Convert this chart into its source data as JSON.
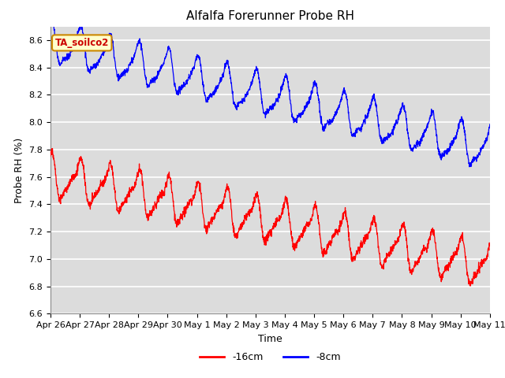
{
  "title": "Alfalfa Forerunner Probe RH",
  "xlabel": "Time",
  "ylabel": "Probe RH (%)",
  "ylim": [
    6.6,
    8.7
  ],
  "xlim": [
    0,
    15
  ],
  "xtick_labels": [
    "Apr 26",
    "Apr 27",
    "Apr 28",
    "Apr 29",
    "Apr 30",
    "May 1",
    "May 2",
    "May 3",
    "May 4",
    "May 5",
    "May 6",
    "May 7",
    "May 8",
    "May 9",
    "May 10",
    "May 11"
  ],
  "xtick_positions": [
    0,
    1,
    2,
    3,
    4,
    5,
    6,
    7,
    8,
    9,
    10,
    11,
    12,
    13,
    14,
    15
  ],
  "legend_label1": "-16cm",
  "legend_label2": "-8cm",
  "color_red": "#ff0000",
  "color_blue": "#0000ff",
  "plot_bg_color": "#dcdcdc",
  "annotation_text": "TA_soilco2",
  "annotation_color": "#cc0000",
  "annotation_bbox_fc": "#ffffcc",
  "annotation_bbox_ec": "#cc8800",
  "title_fontsize": 11,
  "axis_label_fontsize": 9,
  "tick_fontsize": 8,
  "yticks": [
    6.6,
    6.8,
    7.0,
    7.2,
    7.4,
    7.6,
    7.8,
    8.0,
    8.2,
    8.4,
    8.6
  ]
}
